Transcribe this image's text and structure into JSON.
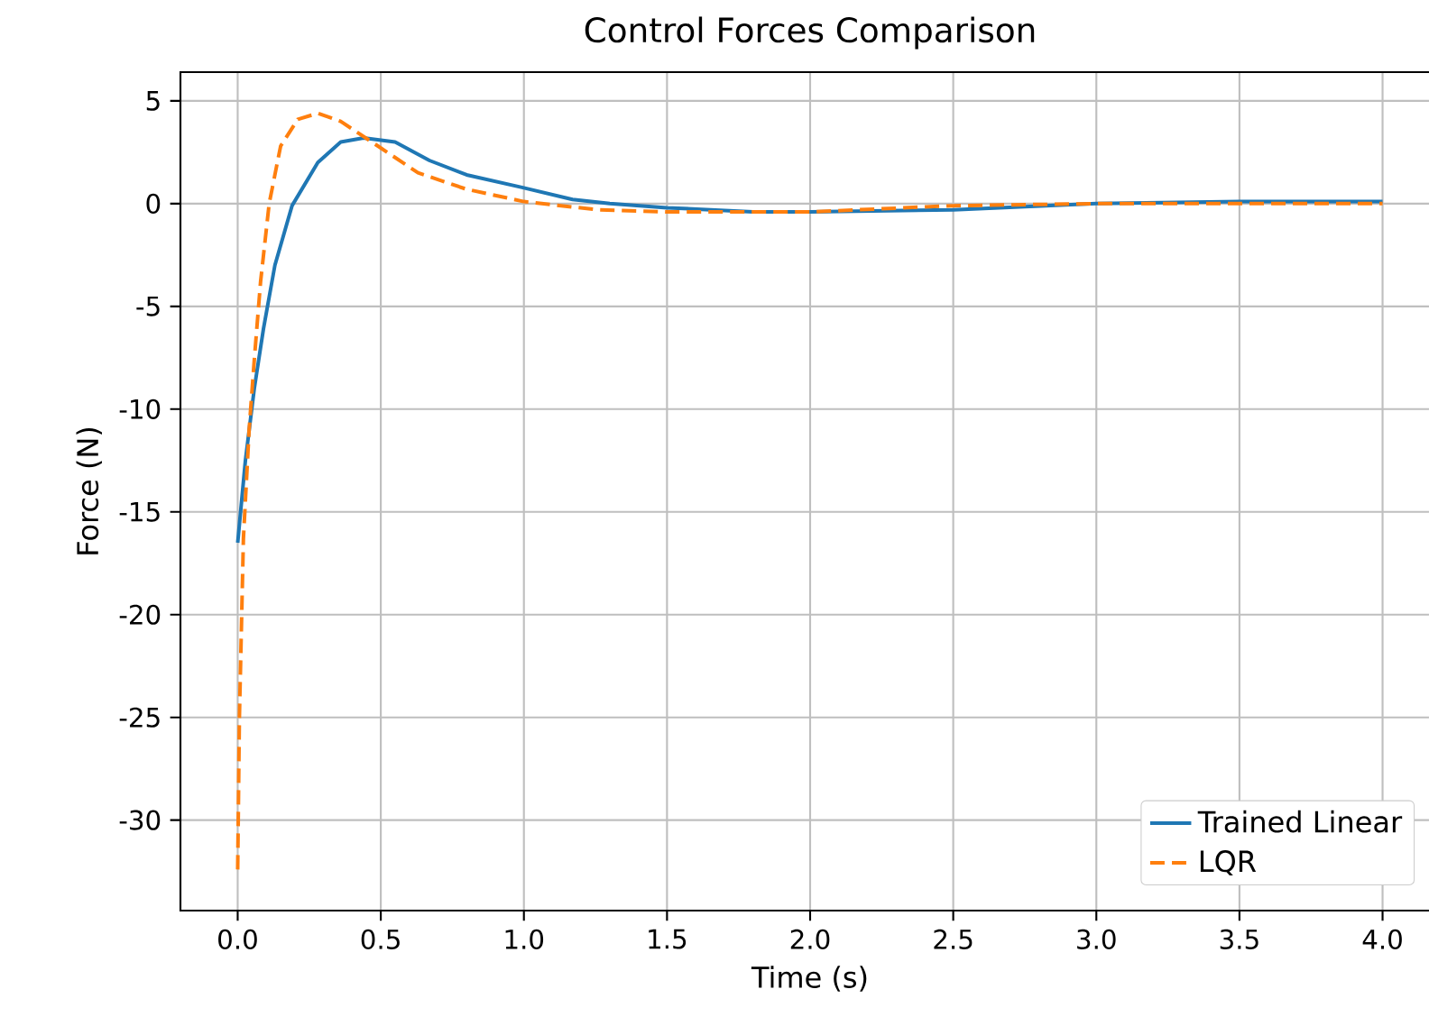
{
  "chart_data": {
    "type": "line",
    "title": "Control Forces Comparison",
    "xlabel": "Time (s)",
    "ylabel": "Force (N)",
    "xlim": [
      -0.2,
      4.2
    ],
    "ylim": [
      -34.4,
      6.4
    ],
    "xticks": [
      {
        "value": 0,
        "label": "0.0"
      },
      {
        "value": 0.5,
        "label": "0.5"
      },
      {
        "value": 1,
        "label": "1.0"
      },
      {
        "value": 1.5,
        "label": "1.5"
      },
      {
        "value": 2,
        "label": "2.0"
      },
      {
        "value": 2.5,
        "label": "2.5"
      },
      {
        "value": 3,
        "label": "3.0"
      },
      {
        "value": 3.5,
        "label": "3.5"
      },
      {
        "value": 4,
        "label": "4.0"
      }
    ],
    "yticks": [
      -30,
      -25,
      -20,
      -15,
      -10,
      -5,
      0,
      5
    ],
    "grid": true,
    "legend": "bottom right",
    "series": [
      {
        "name": "Trained Linear",
        "color": "#1f77b4",
        "line_style": "solid",
        "x": [
          0,
          0.027,
          0.058,
          0.09,
          0.13,
          0.19,
          0.28,
          0.36,
          0.44,
          0.55,
          0.67,
          0.8,
          0.99,
          1.17,
          1.3,
          1.5,
          1.8,
          2.0,
          2.5,
          3.0,
          3.5,
          4.0
        ],
        "values": [
          -16.5,
          -12.5,
          -9.0,
          -6.1,
          -3.0,
          -0.1,
          2.0,
          3.0,
          3.2,
          3.0,
          2.1,
          1.4,
          0.8,
          0.2,
          0.0,
          -0.2,
          -0.4,
          -0.4,
          -0.3,
          0.0,
          0.1,
          0.1
        ]
      },
      {
        "name": "LQR",
        "color": "#ff7f0e",
        "line_style": "dashed",
        "x": [
          0,
          0.006,
          0.02,
          0.04,
          0.058,
          0.08,
          0.11,
          0.15,
          0.21,
          0.28,
          0.36,
          0.49,
          0.63,
          0.8,
          1.0,
          1.26,
          1.5,
          2.0,
          2.5,
          3.0,
          3.5,
          4.0
        ],
        "values": [
          -32.4,
          -25,
          -16.3,
          -11,
          -7.6,
          -3.8,
          0.0,
          2.8,
          4.1,
          4.4,
          4.0,
          2.8,
          1.5,
          0.7,
          0.1,
          -0.3,
          -0.4,
          -0.4,
          -0.1,
          0.0,
          0.0,
          0.0
        ]
      }
    ]
  }
}
